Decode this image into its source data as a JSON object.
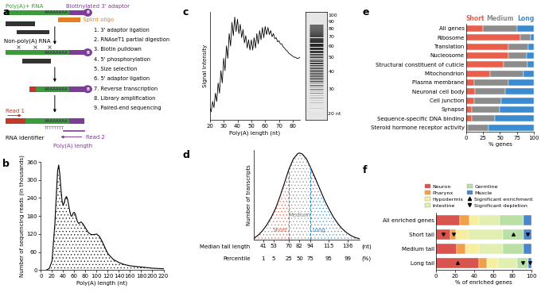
{
  "diagram_a": {
    "panel": "a",
    "labels": {
      "polya_rna": "Poly(A)+ RNA",
      "adaptor": "Biotinylated 3' adaptor",
      "biotin": "B",
      "splint": "Splint oligo",
      "non_polya": "Non-poly(A) RNA",
      "polya_seq": "AAAAAAAA",
      "polyt_seq": "TTTTTTTT",
      "read1": "Read 1",
      "rna_id": "RNA identifier",
      "read2": "Read 2",
      "polya_length": "Poly(A) length"
    },
    "steps": [
      "1. 3' adaptor ligation",
      "2. RNAseT1 partial digestion",
      "3. Biotin pulldown",
      "4. 5' phosphorylation",
      "5. Size selection",
      "6. 5' adaptor ligation",
      "7. Reverse transcription",
      "8. Library amplification",
      "9. Paired-end sequencing"
    ]
  },
  "chart_data": [
    {
      "panel": "b",
      "type": "area",
      "color": "#000000",
      "xlabel": "Poly(A) length (nt)",
      "ylabel": "Number of sequencing reads (in thousands)",
      "x": [
        10,
        15,
        20,
        25,
        28,
        30,
        32,
        34,
        36,
        38,
        40,
        42,
        44,
        46,
        48,
        50,
        52,
        54,
        56,
        58,
        60,
        62,
        64,
        66,
        68,
        70,
        72,
        75,
        80,
        85,
        90,
        95,
        100,
        105,
        110,
        115,
        120,
        130,
        140,
        150,
        160,
        170,
        180,
        190,
        200,
        210,
        220
      ],
      "values": [
        0,
        5,
        30,
        150,
        260,
        330,
        350,
        320,
        270,
        230,
        215,
        225,
        240,
        245,
        235,
        215,
        195,
        180,
        180,
        190,
        192,
        185,
        170,
        160,
        155,
        158,
        160,
        155,
        140,
        125,
        118,
        118,
        120,
        112,
        95,
        75,
        55,
        35,
        25,
        18,
        14,
        12,
        10,
        8,
        6,
        5,
        4
      ],
      "xlim": [
        0,
        220
      ],
      "xticks": [
        0,
        20,
        40,
        60,
        80,
        100,
        120,
        140,
        160,
        180,
        200,
        220
      ],
      "ylim": [
        0,
        360
      ],
      "yticks": [
        0,
        60,
        120,
        180,
        240,
        300,
        360
      ]
    },
    {
      "panel": "c",
      "type": "line",
      "color": "#000000",
      "xlabel": "Poly(A) length (nt)",
      "ylabel": "Signal intensity",
      "x": [
        20,
        21,
        22,
        23,
        24,
        25,
        26,
        27,
        28,
        29,
        30,
        31,
        32,
        33,
        34,
        35,
        36,
        37,
        38,
        39,
        40,
        41,
        42,
        43,
        44,
        45,
        46,
        47,
        48,
        49,
        50,
        51,
        52,
        53,
        54,
        55,
        56,
        57,
        58,
        59,
        60,
        61,
        62,
        63,
        64,
        65,
        66,
        67,
        68,
        69,
        70,
        71,
        72,
        73,
        74,
        75,
        76,
        77,
        78,
        79,
        80,
        81,
        82,
        83,
        84,
        85
      ],
      "values": [
        0.12,
        0.08,
        0.18,
        0.12,
        0.26,
        0.18,
        0.36,
        0.26,
        0.48,
        0.36,
        0.6,
        0.48,
        0.72,
        0.6,
        0.84,
        0.72,
        0.95,
        0.82,
        1.0,
        0.86,
        0.98,
        0.84,
        0.93,
        0.8,
        0.88,
        0.75,
        0.82,
        0.7,
        0.78,
        0.68,
        0.78,
        0.68,
        0.8,
        0.7,
        0.84,
        0.74,
        0.87,
        0.78,
        0.9,
        0.8,
        0.91,
        0.83,
        0.9,
        0.83,
        0.87,
        0.81,
        0.84,
        0.79,
        0.8,
        0.76,
        0.77,
        0.74,
        0.74,
        0.71,
        0.7,
        0.68,
        0.67,
        0.65,
        0.64,
        0.63,
        0.62,
        0.61,
        0.61,
        0.6,
        0.6,
        0.61
      ],
      "xlim": [
        20,
        85
      ],
      "xticks": [
        20,
        30,
        40,
        50,
        60,
        70,
        80
      ],
      "ylim": [
        0,
        1.05
      ],
      "yticks": [],
      "tick_labels": "x",
      "gel": {
        "ylim": [
          18,
          105
        ],
        "ladder": [
          100,
          90,
          80,
          70,
          60,
          50,
          40,
          30,
          {
            "value": 20,
            "label": "20 nt"
          }
        ]
      }
    },
    {
      "panel": "d",
      "type": "area",
      "color": "#000000",
      "ylabel": "Number of transcripts",
      "x": [
        30,
        35,
        40,
        45,
        50,
        55,
        60,
        65,
        70,
        75,
        80,
        82,
        85,
        90,
        94,
        100,
        105,
        110,
        115,
        120,
        125,
        130,
        135,
        140,
        145,
        150
      ],
      "values": [
        5,
        15,
        30,
        50,
        75,
        105,
        145,
        190,
        235,
        270,
        288,
        290,
        287,
        270,
        245,
        205,
        170,
        135,
        105,
        78,
        56,
        38,
        25,
        15,
        8,
        4
      ],
      "xlim": [
        30,
        150
      ],
      "xticks": [
        41,
        53,
        70,
        82,
        94,
        115,
        136
      ],
      "ylim": [
        0,
        300
      ],
      "yticks": [],
      "tick_labels": "x",
      "xtick_row_title": "Median tail length",
      "xtick_row_unit": "(nt)",
      "percentile_row": {
        "title": "Percentile",
        "unit": "(%)",
        "values": [
          1,
          5,
          25,
          50,
          75,
          95,
          99
        ]
      },
      "groups": [
        {
          "name": "Short",
          "color": "#e8604c",
          "to": 70
        },
        {
          "name": "Medium",
          "color": "#8c8c8c",
          "from": 70,
          "to": 94
        },
        {
          "name": "Long",
          "color": "#3b8bd0",
          "from": 94
        }
      ]
    },
    {
      "panel": "e",
      "type": "bar",
      "orientation": "horizontal",
      "stacked": true,
      "legend": "top",
      "xlabel": "% genes",
      "categories": [
        "All genes",
        "Ribosome",
        "Translation",
        "Nucleosome",
        "Structural constituent of cuticle",
        "Mitochondrion",
        "Plasma membrane",
        "Neuronal cell body",
        "Cell junction",
        "Synapse",
        "Sequence-specific DNA binding",
        "Steroid hormone receptor activity"
      ],
      "series": [
        {
          "name": "Short",
          "color": "#e8604c",
          "values": [
            25,
            80,
            62,
            62,
            55,
            35,
            12,
            13,
            12,
            8,
            8,
            3
          ]
        },
        {
          "name": "Medium",
          "color": "#8c8c8c",
          "values": [
            50,
            15,
            30,
            27,
            35,
            50,
            50,
            45,
            40,
            42,
            35,
            30
          ]
        },
        {
          "name": "Long",
          "color": "#3b8bd0",
          "values": [
            25,
            5,
            8,
            11,
            10,
            15,
            38,
            42,
            48,
            50,
            57,
            67
          ]
        }
      ],
      "xlim": [
        0,
        100
      ],
      "xticks": [
        0,
        25,
        50,
        75,
        100
      ]
    },
    {
      "panel": "f",
      "type": "bar",
      "orientation": "horizontal",
      "stacked": true,
      "legend": "top",
      "xlabel": "% of enriched genes",
      "categories": [
        "All enriched genes",
        "Short tail",
        "Medium tail",
        "Long tail"
      ],
      "series": [
        {
          "name": "Neuron",
          "color": "#d9534f",
          "values": [
            25,
            15,
            22,
            45
          ],
          "significance": [
            null,
            "Significant depletion",
            null,
            "Significant enrichment"
          ]
        },
        {
          "name": "Pharynx",
          "color": "#f0a04b",
          "values": [
            10,
            6,
            9,
            8
          ],
          "significance": [
            null,
            "Significant depletion",
            null,
            null
          ]
        },
        {
          "name": "Hypodermis",
          "color": "#f7eea0",
          "values": [
            10,
            13,
            14,
            12
          ],
          "significance": [
            null,
            null,
            null,
            null
          ]
        },
        {
          "name": "Intestine",
          "color": "#e3efb0",
          "values": [
            22,
            36,
            25,
            20
          ],
          "significance": [
            null,
            null,
            null,
            null
          ]
        },
        {
          "name": "Germline",
          "color": "#b9e0a5",
          "values": [
            25,
            22,
            22,
            12
          ],
          "significance": [
            null,
            "Significant enrichment",
            null,
            "Significant depletion"
          ]
        },
        {
          "name": "Muscle",
          "color": "#4a86c8",
          "values": [
            8,
            8,
            8,
            3
          ],
          "significance": [
            null,
            "Significant depletion",
            null,
            "Significant depletion"
          ]
        }
      ],
      "significance_markers": [
        {
          "name": "Significant enrichment",
          "marker": "triangle_up"
        },
        {
          "name": "Significant depletion",
          "marker": "triangle_down"
        }
      ],
      "xlim": [
        0,
        100
      ],
      "xticks": [
        0,
        20,
        40,
        60,
        80,
        100
      ]
    }
  ]
}
